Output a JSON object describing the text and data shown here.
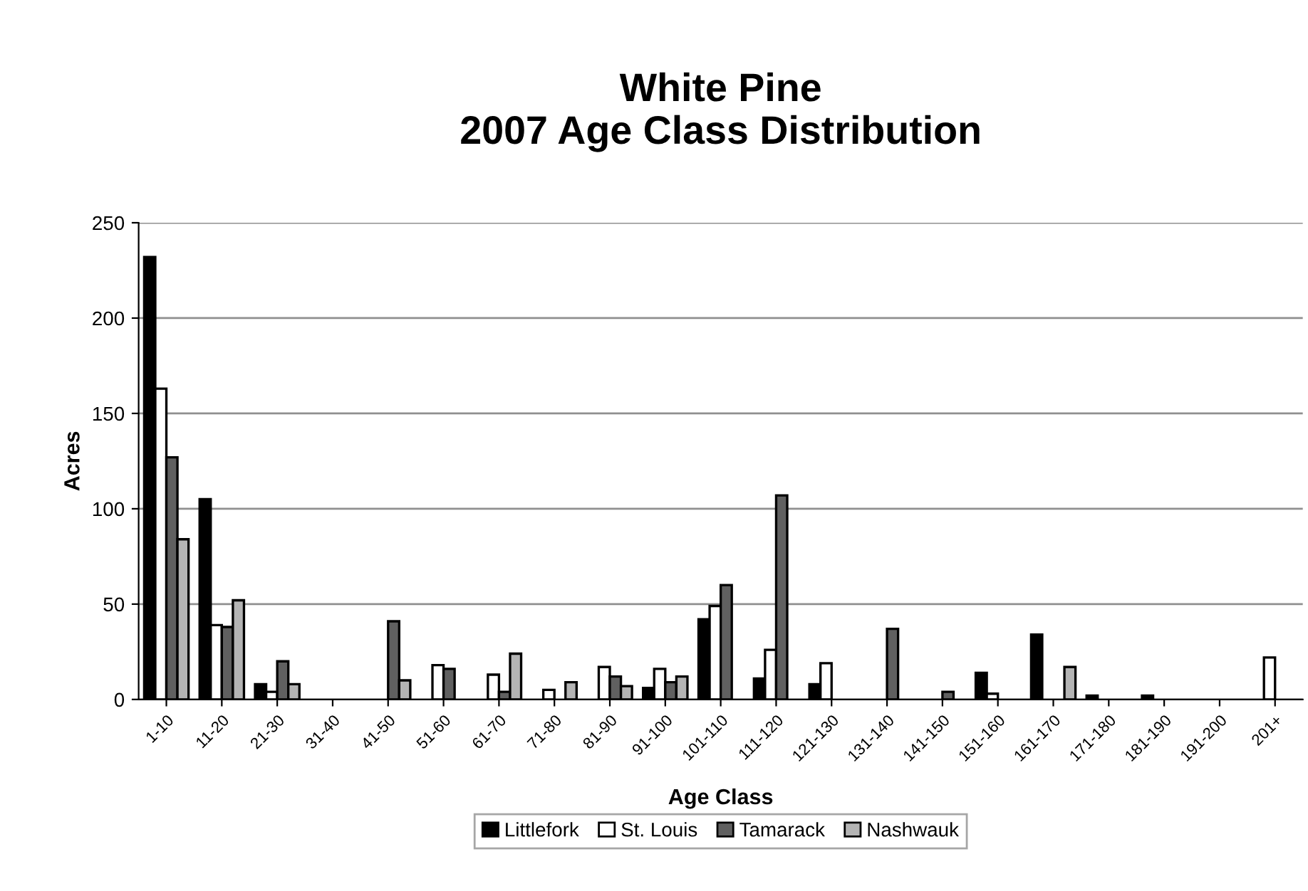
{
  "chart_data": {
    "type": "bar",
    "title": "White Pine\n2007 Age Class Distribution",
    "xlabel": "Age Class",
    "ylabel": "Acres",
    "categories": [
      "1-10",
      "11-20",
      "21-30",
      "31-40",
      "41-50",
      "51-60",
      "61-70",
      "71-80",
      "81-90",
      "91-100",
      "101-110",
      "111-120",
      "121-130",
      "131-140",
      "141-150",
      "151-160",
      "161-170",
      "171-180",
      "181-190",
      "191-200",
      "201+"
    ],
    "series": [
      {
        "name": "Littlefork",
        "color": "#000000",
        "values": [
          232,
          105,
          8,
          0,
          0,
          0,
          0,
          0,
          0,
          6,
          42,
          11,
          8,
          0,
          0,
          14,
          34,
          2,
          2,
          0,
          0
        ]
      },
      {
        "name": "St. Louis",
        "color": "#ffffff",
        "values": [
          163,
          39,
          4,
          0,
          0,
          18,
          13,
          5,
          17,
          16,
          49,
          26,
          19,
          0,
          0,
          3,
          0,
          0,
          0,
          0,
          22
        ]
      },
      {
        "name": "Tamarack",
        "color": "#606060",
        "values": [
          127,
          38,
          20,
          0,
          41,
          16,
          4,
          0,
          12,
          9,
          60,
          107,
          0,
          37,
          4,
          0,
          0,
          0,
          0,
          0,
          0
        ]
      },
      {
        "name": "Nashwauk",
        "color": "#b4b4b4",
        "values": [
          84,
          52,
          8,
          0,
          10,
          0,
          24,
          9,
          7,
          12,
          0,
          0,
          0,
          0,
          0,
          0,
          17,
          0,
          0,
          0,
          0
        ]
      }
    ],
    "ylim": [
      0,
      250
    ],
    "yticks": [
      0,
      50,
      100,
      150,
      200,
      250
    ],
    "grid": "y",
    "legend": "bottom"
  }
}
